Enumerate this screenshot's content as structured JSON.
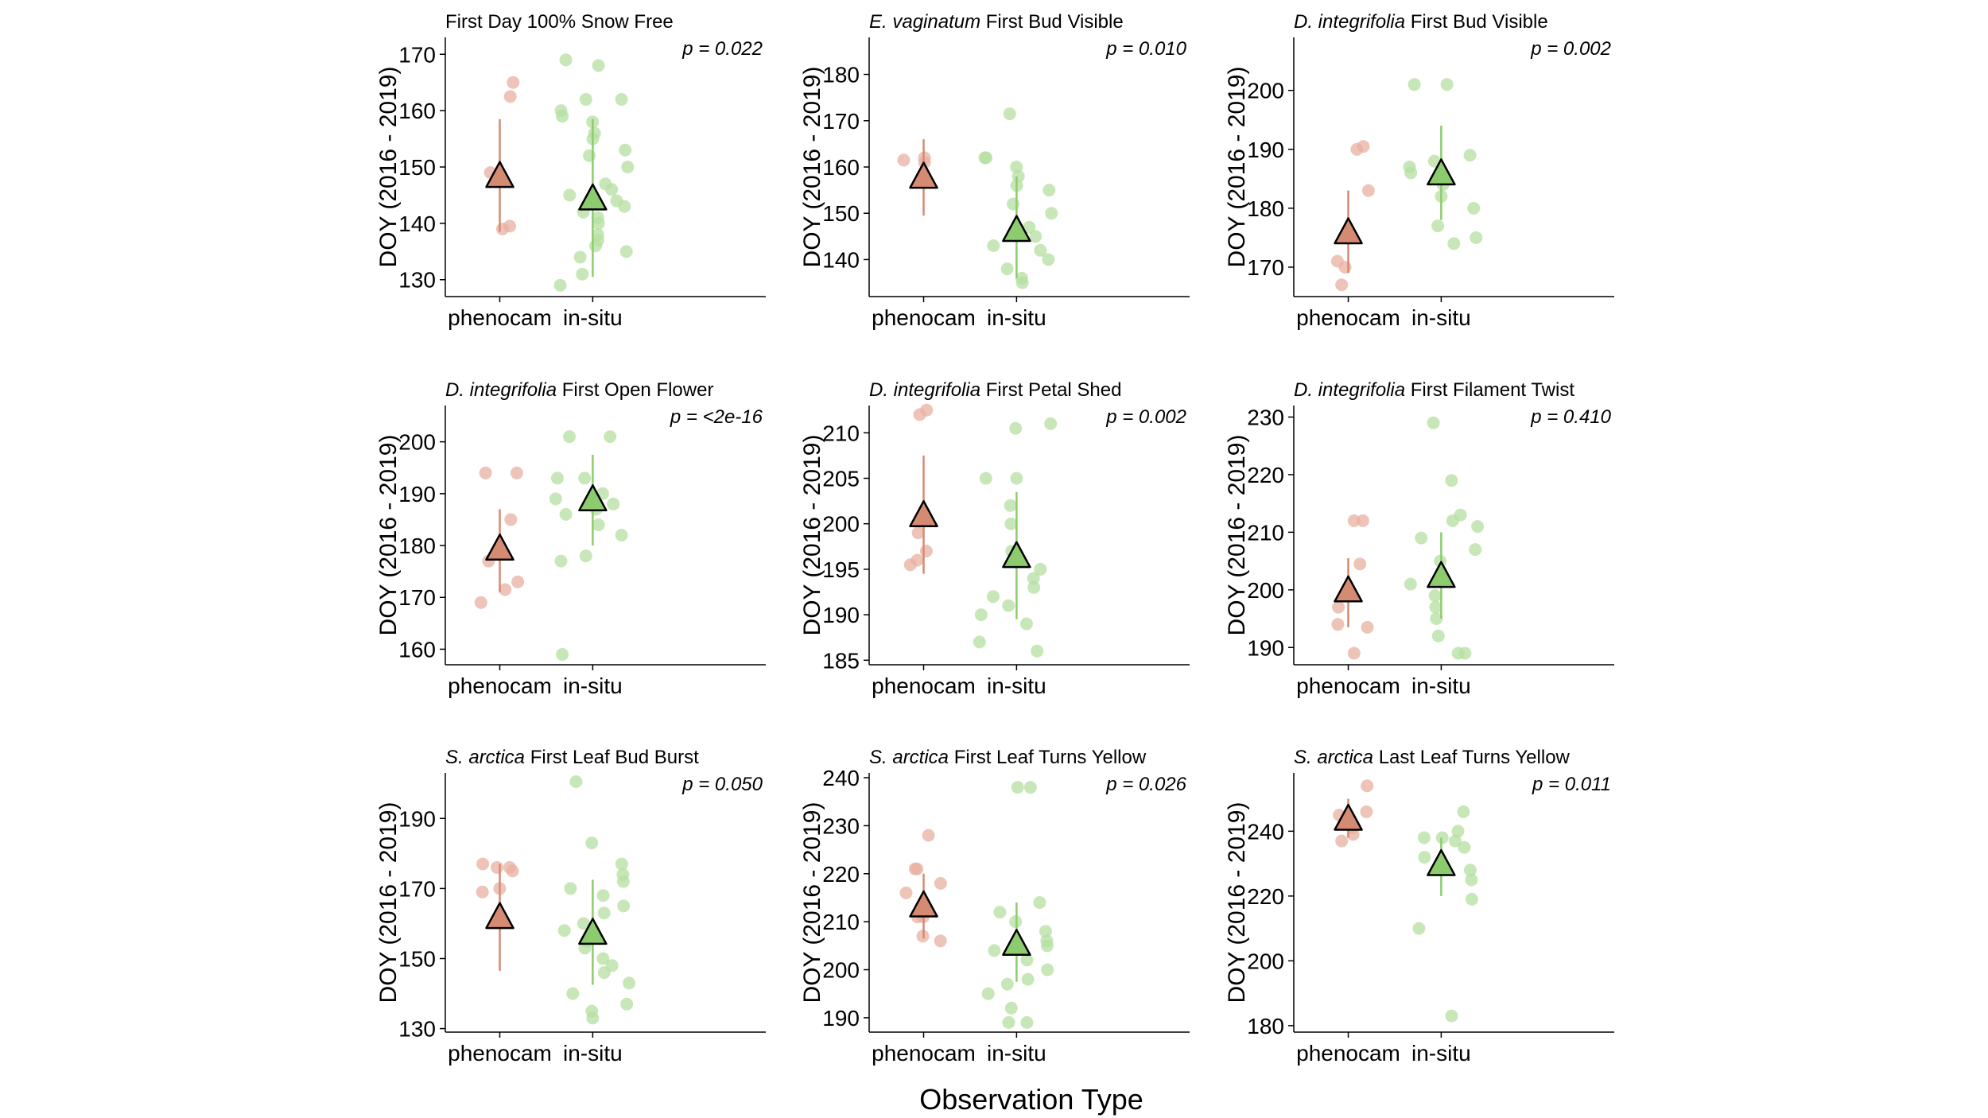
{
  "figure": {
    "x_axis_title": "Observation Type",
    "colors": {
      "phenocam": "#d58a72",
      "phenocam_point": "#e8b0a2",
      "insitu": "#8ccc6e",
      "insitu_point": "#b5dfa0"
    }
  },
  "chart_data": [
    {
      "type": "scatter",
      "title_species": "",
      "title_rest": "First Day 100% Snow Free",
      "p_value": "p = 0.022",
      "ylabel": "DOY (2016 - 2019)",
      "categories": [
        "phenocam",
        "in-situ"
      ],
      "ylim": [
        127,
        173
      ],
      "yticks": [
        130,
        140,
        150,
        160,
        170
      ],
      "means": [
        148.5,
        144.5
      ],
      "ranges": [
        [
          138.5,
          158.5
        ],
        [
          130.5,
          158.5
        ]
      ],
      "points": [
        [
          139.5,
          139,
          148.5,
          149,
          165,
          162.5
        ],
        [
          129,
          131,
          134,
          135,
          136,
          137,
          138,
          140,
          141,
          142,
          143,
          144,
          145,
          146,
          147,
          150,
          152,
          153,
          155,
          156,
          158,
          159,
          160,
          162,
          162,
          168,
          169
        ]
      ]
    },
    {
      "type": "scatter",
      "title_species": "E. vaginatum",
      "title_rest": "First Bud Visible",
      "p_value": "p = 0.010",
      "ylabel": "DOY (2016 - 2019)",
      "categories": [
        "phenocam",
        "in-situ"
      ],
      "ylim": [
        132,
        188
      ],
      "yticks": [
        140,
        150,
        160,
        170,
        180
      ],
      "means": [
        158,
        146.5
      ],
      "ranges": [
        [
          149.5,
          166
        ],
        [
          136,
          158
        ]
      ],
      "points": [
        [
          161,
          162,
          161.5
        ],
        [
          135,
          136,
          138,
          140,
          142,
          143,
          145,
          147,
          150,
          152,
          155,
          156,
          158,
          160,
          162,
          162,
          171.5
        ]
      ]
    },
    {
      "type": "scatter",
      "title_species": "D. integrifolia",
      "title_rest": "First Bud Visible",
      "p_value": "p = 0.002",
      "ylabel": "DOY (2016 - 2019)",
      "categories": [
        "phenocam",
        "in-situ"
      ],
      "ylim": [
        165,
        209
      ],
      "yticks": [
        170,
        180,
        190,
        200
      ],
      "means": [
        176,
        186
      ],
      "ranges": [
        [
          169,
          183
        ],
        [
          178,
          194
        ]
      ],
      "points": [
        [
          167,
          170,
          171,
          183,
          190,
          190.5
        ],
        [
          174,
          175,
          177,
          180,
          182,
          184,
          185,
          186,
          187,
          188,
          189,
          201,
          201
        ]
      ]
    },
    {
      "type": "scatter",
      "title_species": "D. integrifolia",
      "title_rest": "First Open Flower",
      "p_value": "p = <2e-16",
      "ylabel": "DOY (2016 - 2019)",
      "categories": [
        "phenocam",
        "in-situ"
      ],
      "ylim": [
        157,
        207
      ],
      "yticks": [
        160,
        170,
        180,
        190,
        200
      ],
      "means": [
        179.5,
        189
      ],
      "ranges": [
        [
          171,
          187
        ],
        [
          180,
          197.5
        ]
      ],
      "points": [
        [
          169,
          171.5,
          173,
          177,
          185,
          194,
          194
        ],
        [
          159,
          177,
          178,
          182,
          184,
          186,
          187,
          188,
          189,
          190,
          193,
          193,
          201,
          201
        ]
      ]
    },
    {
      "type": "scatter",
      "title_species": "D. integrifolia",
      "title_rest": "First Petal Shed",
      "p_value": "p = 0.002",
      "ylabel": "DOY (2016 - 2019)",
      "categories": [
        "phenocam",
        "in-situ"
      ],
      "ylim": [
        184.5,
        213
      ],
      "yticks": [
        185,
        190,
        195,
        200,
        205,
        210
      ],
      "means": [
        201,
        196.5
      ],
      "ranges": [
        [
          194.5,
          207.5
        ],
        [
          189.5,
          203.5
        ]
      ],
      "points": [
        [
          195.5,
          196,
          197,
          199,
          212,
          212.5
        ],
        [
          186,
          187,
          189,
          190,
          191,
          192,
          193,
          194,
          195,
          196,
          197,
          200,
          202,
          205,
          205,
          210.5,
          211
        ]
      ]
    },
    {
      "type": "scatter",
      "title_species": "D. integrifolia",
      "title_rest": "First Filament Twist",
      "p_value": "p = 0.410",
      "ylabel": "DOY (2016 - 2019)",
      "categories": [
        "phenocam",
        "in-situ"
      ],
      "ylim": [
        187,
        232
      ],
      "yticks": [
        190,
        200,
        210,
        220,
        230
      ],
      "means": [
        200,
        202.5
      ],
      "ranges": [
        [
          193.5,
          205.5
        ],
        [
          195,
          210
        ]
      ],
      "points": [
        [
          189,
          193.5,
          194,
          197,
          204.5,
          212,
          212
        ],
        [
          189,
          189,
          192,
          195,
          197,
          199,
          201,
          203,
          205,
          207,
          209,
          211,
          212,
          213,
          219,
          229
        ]
      ]
    },
    {
      "type": "scatter",
      "title_species": "S. arctica",
      "title_rest": "First Leaf Bud Burst",
      "p_value": "p = 0.050",
      "ylabel": "DOY (2016 - 2019)",
      "categories": [
        "phenocam",
        "in-situ"
      ],
      "ylim": [
        129,
        203
      ],
      "yticks": [
        130,
        150,
        170,
        190
      ],
      "means": [
        162,
        157.5
      ],
      "ranges": [
        [
          146.5,
          177
        ],
        [
          142.5,
          172.5
        ]
      ],
      "points": [
        [
          169,
          170,
          175,
          176,
          177,
          176
        ],
        [
          133,
          135,
          137,
          140,
          143,
          146,
          148,
          150,
          153,
          155,
          158,
          160,
          163,
          165,
          168,
          170,
          172,
          174,
          177,
          183,
          200.5
        ]
      ]
    },
    {
      "type": "scatter",
      "title_species": "S. arctica",
      "title_rest": "First Leaf Turns Yellow",
      "p_value": "p = 0.026",
      "ylabel": "DOY (2016 - 2019)",
      "categories": [
        "phenocam",
        "in-situ"
      ],
      "ylim": [
        187,
        241
      ],
      "yticks": [
        190,
        200,
        210,
        220,
        230,
        240
      ],
      "means": [
        213.5,
        205.5
      ],
      "ranges": [
        [
          206.5,
          220
        ],
        [
          197.5,
          214
        ]
      ],
      "points": [
        [
          206,
          207,
          211,
          211,
          216,
          218,
          221,
          221,
          228
        ],
        [
          189,
          189,
          192,
          195,
          197,
          198,
          200,
          202,
          204,
          205,
          206,
          208,
          210,
          212,
          214,
          238,
          238
        ]
      ]
    },
    {
      "type": "scatter",
      "title_species": "S. arctica",
      "title_rest": "Last Leaf Turns Yellow",
      "p_value": "p = 0.011",
      "ylabel": "DOY (2016 - 2019)",
      "categories": [
        "phenocam",
        "in-situ"
      ],
      "ylim": [
        178,
        258
      ],
      "yticks": [
        180,
        200,
        220,
        240
      ],
      "means": [
        244,
        230
      ],
      "ranges": [
        [
          238,
          250
        ],
        [
          220,
          238
        ]
      ],
      "points": [
        [
          237,
          239,
          241,
          243,
          245,
          246,
          254
        ],
        [
          183,
          210,
          219,
          225,
          228,
          230,
          232,
          235,
          237,
          238,
          238,
          240,
          246
        ]
      ]
    }
  ]
}
